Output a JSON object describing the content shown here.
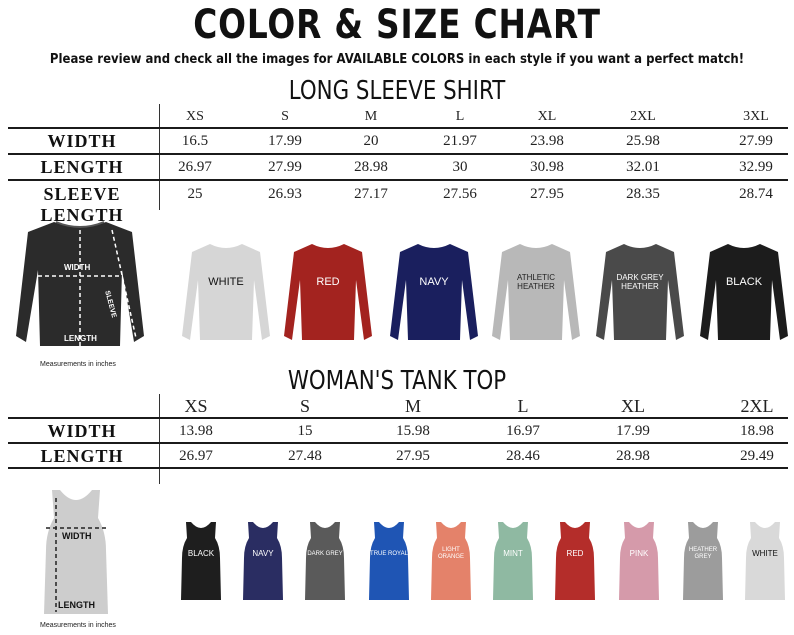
{
  "header": {
    "title": "COLOR & SIZE CHART",
    "subtitle": "Please review and check all the images for AVAILABLE COLORS in each style if you want a perfect match!"
  },
  "long_sleeve": {
    "title": "LONG SLEEVE SHIRT",
    "sizes": [
      "XS",
      "S",
      "M",
      "L",
      "XL",
      "2XL",
      "3XL"
    ],
    "rows": [
      {
        "label": "WIDTH",
        "values": [
          "16.5",
          "17.99",
          "20",
          "21.97",
          "23.98",
          "25.98",
          "27.99"
        ]
      },
      {
        "label": "LENGTH",
        "values": [
          "26.97",
          "27.99",
          "28.98",
          "30",
          "30.98",
          "32.01",
          "32.99"
        ]
      },
      {
        "label": "SLEEVE LENGTH",
        "values": [
          "25",
          "26.93",
          "27.17",
          "27.56",
          "27.95",
          "28.35",
          "28.74"
        ]
      }
    ],
    "diagram": {
      "width_label": "WIDTH",
      "length_label": "LENGTH",
      "sleeve_label": "SLEEVE",
      "note": "Measurements in inches"
    },
    "colors": [
      {
        "name": "WHITE",
        "fill": "#d6d6d6",
        "text": "#111111"
      },
      {
        "name": "RED",
        "fill": "#a3231f",
        "text": "#ffffff"
      },
      {
        "name": "NAVY",
        "fill": "#1a1f5e",
        "text": "#ffffff"
      },
      {
        "name": "ATHLETIC HEATHER",
        "fill": "#b8b8b8",
        "text": "#222222"
      },
      {
        "name": "DARK GREY HEATHER",
        "fill": "#4a4a4a",
        "text": "#ffffff"
      },
      {
        "name": "BLACK",
        "fill": "#1c1c1c",
        "text": "#ffffff"
      }
    ]
  },
  "tank": {
    "title": "WOMAN'S TANK TOP",
    "sizes": [
      "XS",
      "S",
      "M",
      "L",
      "XL",
      "2XL"
    ],
    "rows": [
      {
        "label": "WIDTH",
        "values": [
          "13.98",
          "15",
          "15.98",
          "16.97",
          "17.99",
          "18.98"
        ]
      },
      {
        "label": "LENGTH",
        "values": [
          "26.97",
          "27.48",
          "27.95",
          "28.46",
          "28.98",
          "29.49"
        ]
      }
    ],
    "diagram": {
      "width_label": "WIDTH",
      "length_label": "LENGTH",
      "note": "Measurements in inches"
    },
    "colors": [
      {
        "name": "BLACK",
        "fill": "#1e1e1e",
        "text": "#ffffff"
      },
      {
        "name": "NAVY",
        "fill": "#2a2d62",
        "text": "#ffffff"
      },
      {
        "name": "DARK GREY",
        "fill": "#5a5a5a",
        "text": "#ffffff"
      },
      {
        "name": "TRUE ROYAL",
        "fill": "#1f55b4",
        "text": "#ffffff"
      },
      {
        "name": "LIGHT ORANGE",
        "fill": "#e4826a",
        "text": "#ffffff"
      },
      {
        "name": "MINT",
        "fill": "#8fb9a2",
        "text": "#ffffff"
      },
      {
        "name": "RED",
        "fill": "#b42d2a",
        "text": "#ffffff"
      },
      {
        "name": "PINK",
        "fill": "#d59aaa",
        "text": "#ffffff"
      },
      {
        "name": "HEATHER GREY",
        "fill": "#9c9c9c",
        "text": "#ffffff"
      },
      {
        "name": "WHITE",
        "fill": "#d9d9d9",
        "text": "#111111"
      }
    ]
  }
}
